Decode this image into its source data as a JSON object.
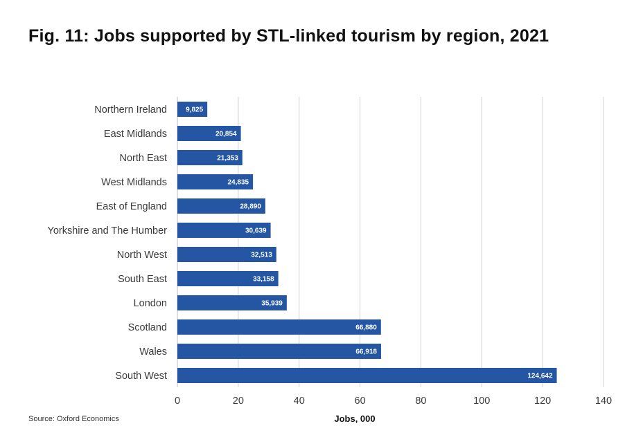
{
  "figure": {
    "title": "Fig. 11: Jobs supported by STL-linked tourism by region, 2021",
    "source": "Source: Oxford Economics"
  },
  "chart_data": {
    "type": "bar",
    "orientation": "horizontal",
    "title": "Fig. 11: Jobs supported by STL-linked tourism by region, 2021",
    "xlabel": "Jobs, 000",
    "ylabel": "",
    "xlim": [
      0,
      140
    ],
    "xticks": [
      0,
      20,
      40,
      60,
      80,
      100,
      120,
      140
    ],
    "grid": true,
    "bar_color": "#2456A4",
    "categories": [
      "Northern Ireland",
      "East Midlands",
      "North East",
      "West Midlands",
      "East of England",
      "Yorkshire and The Humber",
      "North West",
      "South East",
      "London",
      "Scotland",
      "Wales",
      "South West"
    ],
    "values": [
      9.825,
      20.854,
      21.353,
      24.835,
      28.89,
      30.639,
      32.513,
      33.158,
      35.939,
      66.88,
      66.918,
      124.642
    ],
    "data_labels": [
      "9,825",
      "20,854",
      "21,353",
      "24,835",
      "28,890",
      "30,639",
      "32,513",
      "33,158",
      "35,939",
      "66,880",
      "66,918",
      "124,642"
    ]
  }
}
